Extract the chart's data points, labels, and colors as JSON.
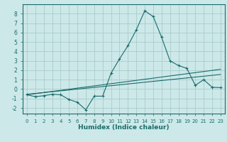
{
  "xlabel": "Humidex (Indice chaleur)",
  "bg_color": "#cce8e8",
  "grid_color": "#aacccc",
  "line_color": "#1a6b6b",
  "xlim": [
    -0.5,
    23.5
  ],
  "ylim": [
    -2.6,
    9.0
  ],
  "yticks": [
    -2,
    -1,
    0,
    1,
    2,
    3,
    4,
    5,
    6,
    7,
    8
  ],
  "xticks": [
    0,
    1,
    2,
    3,
    4,
    5,
    6,
    7,
    8,
    9,
    10,
    11,
    12,
    13,
    14,
    15,
    16,
    17,
    18,
    19,
    20,
    21,
    22,
    23
  ],
  "curve1_x": [
    0,
    1,
    2,
    3,
    4,
    5,
    6,
    7,
    8,
    9,
    10,
    11,
    12,
    13,
    14,
    15,
    16,
    17,
    18,
    19,
    20,
    21,
    22,
    23
  ],
  "curve1_y": [
    -0.6,
    -0.8,
    -0.7,
    -0.55,
    -0.6,
    -1.1,
    -1.4,
    -2.2,
    -0.75,
    -0.75,
    1.7,
    3.2,
    4.6,
    6.3,
    8.3,
    7.7,
    5.5,
    3.0,
    2.5,
    2.2,
    0.4,
    1.0,
    0.2,
    0.15
  ],
  "line2_x": [
    0,
    23
  ],
  "line2_y": [
    -0.6,
    2.1
  ],
  "line3_x": [
    0,
    23
  ],
  "line3_y": [
    -0.55,
    1.55
  ]
}
